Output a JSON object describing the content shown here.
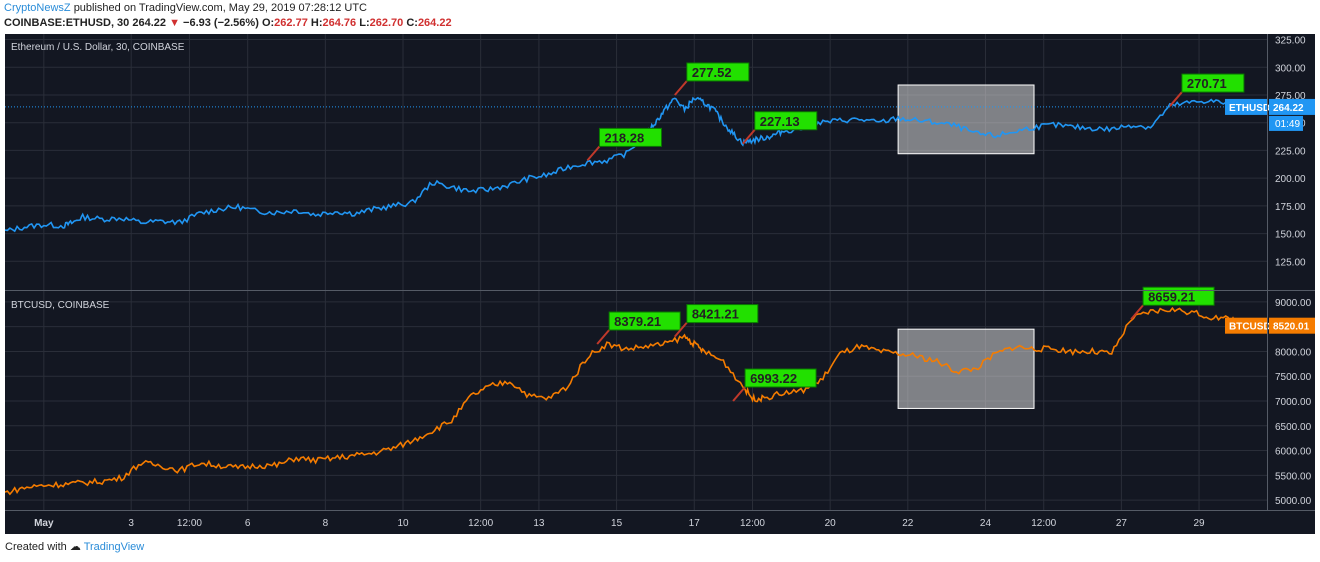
{
  "header": {
    "author": "CryptoNewsZ",
    "published": "published on TradingView.com, May 29, 2019 07:28:12 UTC",
    "symbol": "COINBASE:ETHUSD, 30",
    "last": "264.22",
    "change_arrow": "▼",
    "change": "−6.93 (−2.56%)",
    "o_label": "O:",
    "o_value": "262.77",
    "h_label": "H:",
    "h_value": "264.76",
    "l_label": "L:",
    "l_value": "262.70",
    "c_label": "C:",
    "c_value": "264.22"
  },
  "footer": {
    "created_with": "Created with",
    "brand": "TradingView"
  },
  "colors": {
    "background": "#131722",
    "grid": "#2a2e39",
    "eth_line": "#2196f3",
    "btc_line": "#f57c00",
    "callout_bg": "#22e000",
    "callout_border": "#0a7a00",
    "arrow": "#c0392b",
    "highlight_box": "#d9d9d9",
    "axis_text": "#d1d4dc",
    "price_line": "#2196f3"
  },
  "chart_data": [
    {
      "type": "line",
      "title": "Ethereum / U.S. Dollar, 30, COINBASE",
      "series": [
        {
          "name": "ETHUSD"
        }
      ],
      "ylim": [
        100,
        330
      ],
      "y_ticks": [
        "325.00",
        "300.00",
        "275.00",
        "250.00",
        "225.00",
        "200.00",
        "175.00",
        "150.00",
        "125.00"
      ],
      "y_tick_values": [
        325,
        300,
        275,
        250,
        225,
        200,
        175,
        150,
        125
      ],
      "current_label": "ETHUSD",
      "current_value": "264.22",
      "countdown": "01:49",
      "x": [
        0,
        1,
        2,
        3,
        4,
        5,
        6,
        7,
        8,
        9,
        10,
        11,
        12,
        13,
        14,
        15,
        16,
        17,
        18,
        19,
        20,
        21,
        22,
        23,
        24,
        25,
        26,
        27,
        28,
        29
      ],
      "points": [
        [
          0,
          152
        ],
        [
          1,
          156
        ],
        [
          2,
          158
        ],
        [
          3,
          157
        ],
        [
          3.5,
          160
        ],
        [
          4,
          165
        ],
        [
          5,
          163
        ],
        [
          6,
          164
        ],
        [
          7,
          160
        ],
        [
          8,
          161
        ],
        [
          9,
          160
        ],
        [
          10,
          168
        ],
        [
          11,
          172
        ],
        [
          12,
          174
        ],
        [
          13,
          170
        ],
        [
          14,
          169
        ],
        [
          15,
          171
        ],
        [
          16,
          167
        ],
        [
          17,
          170
        ],
        [
          18,
          168
        ],
        [
          19,
          172
        ],
        [
          20,
          175
        ],
        [
          21,
          178
        ],
        [
          22,
          196
        ],
        [
          23,
          192
        ],
        [
          24,
          188
        ],
        [
          25,
          190
        ],
        [
          26,
          194
        ],
        [
          27,
          200
        ],
        [
          28,
          203
        ],
        [
          29,
          210
        ],
        [
          30,
          214
        ],
        [
          31,
          216
        ],
        [
          32,
          222
        ],
        [
          33,
          240
        ],
        [
          33.5,
          250
        ],
        [
          34,
          262
        ],
        [
          34.5,
          272
        ],
        [
          35,
          262
        ],
        [
          35.5,
          272
        ],
        [
          36,
          268
        ],
        [
          36.5,
          262
        ],
        [
          37,
          250
        ],
        [
          37.5,
          240
        ],
        [
          38,
          232
        ],
        [
          38.5,
          234
        ],
        [
          39,
          236
        ],
        [
          39.5,
          238
        ],
        [
          40,
          242
        ],
        [
          41,
          245
        ],
        [
          42,
          250
        ],
        [
          43,
          252
        ],
        [
          44,
          253
        ],
        [
          45,
          250
        ],
        [
          46,
          254
        ],
        [
          47,
          252
        ],
        [
          48,
          250
        ],
        [
          49,
          247
        ],
        [
          50,
          240
        ],
        [
          51,
          238
        ],
        [
          52,
          242
        ],
        [
          53,
          246
        ],
        [
          54,
          248
        ],
        [
          55,
          246
        ],
        [
          56,
          245
        ],
        [
          57,
          244
        ],
        [
          58,
          248
        ],
        [
          59,
          246
        ],
        [
          60,
          265
        ],
        [
          61,
          268
        ],
        [
          62,
          270
        ],
        [
          63,
          267
        ],
        [
          64,
          265
        ],
        [
          65,
          264
        ]
      ],
      "annotations": [
        {
          "label": "218.28",
          "at": [
            30,
            216
          ]
        },
        {
          "label": "277.52",
          "at": [
            34.5,
            275
          ]
        },
        {
          "label": "227.13",
          "at": [
            38,
            231
          ]
        },
        {
          "label": "270.71",
          "at": [
            60,
            265
          ]
        }
      ],
      "highlight": {
        "x": [
          46,
          53
        ],
        "y": [
          222,
          284
        ]
      }
    },
    {
      "type": "line",
      "title": "BTCUSD, COINBASE",
      "series": [
        {
          "name": "BTCUSD"
        }
      ],
      "ylim": [
        4800,
        9200
      ],
      "y_ticks": [
        "9000.00",
        "8500.00",
        "8000.00",
        "7500.00",
        "7000.00",
        "6500.00",
        "6000.00",
        "5500.00",
        "5000.00"
      ],
      "y_tick_values": [
        9000,
        8500,
        8000,
        7500,
        7000,
        6500,
        6000,
        5500,
        5000
      ],
      "current_label": "BTCUSD",
      "current_value": "8520.01",
      "points": [
        [
          0,
          5150
        ],
        [
          1,
          5250
        ],
        [
          2,
          5300
        ],
        [
          3,
          5320
        ],
        [
          4,
          5350
        ],
        [
          5,
          5380
        ],
        [
          6,
          5450
        ],
        [
          7,
          5750
        ],
        [
          8,
          5700
        ],
        [
          9,
          5600
        ],
        [
          10,
          5750
        ],
        [
          11,
          5700
        ],
        [
          12,
          5650
        ],
        [
          13,
          5700
        ],
        [
          14,
          5700
        ],
        [
          15,
          5850
        ],
        [
          16,
          5800
        ],
        [
          17,
          5850
        ],
        [
          18,
          5900
        ],
        [
          19,
          5950
        ],
        [
          20,
          6050
        ],
        [
          21,
          6200
        ],
        [
          22,
          6400
        ],
        [
          23,
          6600
        ],
        [
          24,
          7100
        ],
        [
          25,
          7300
        ],
        [
          26,
          7400
        ],
        [
          27,
          7100
        ],
        [
          28,
          7050
        ],
        [
          29,
          7300
        ],
        [
          30,
          7900
        ],
        [
          31,
          8150
        ],
        [
          32,
          8050
        ],
        [
          33,
          8100
        ],
        [
          34,
          8150
        ],
        [
          35,
          8300
        ],
        [
          35.5,
          8150
        ],
        [
          36,
          8000
        ],
        [
          37,
          7800
        ],
        [
          38,
          7300
        ],
        [
          38.5,
          7050
        ],
        [
          39,
          7050
        ],
        [
          40,
          7150
        ],
        [
          41,
          7200
        ],
        [
          42,
          7400
        ],
        [
          43,
          7950
        ],
        [
          44,
          8100
        ],
        [
          45,
          8000
        ],
        [
          46,
          7950
        ],
        [
          47,
          7900
        ],
        [
          48,
          7800
        ],
        [
          49,
          7600
        ],
        [
          50,
          7650
        ],
        [
          51,
          7950
        ],
        [
          52,
          8100
        ],
        [
          53,
          8050
        ],
        [
          54,
          8050
        ],
        [
          55,
          8000
        ],
        [
          56,
          8000
        ],
        [
          57,
          7950
        ],
        [
          58,
          8650
        ],
        [
          59,
          8800
        ],
        [
          60,
          8850
        ],
        [
          61,
          8800
        ],
        [
          62,
          8700
        ],
        [
          63,
          8650
        ],
        [
          64,
          8600
        ]
      ],
      "annotations": [
        {
          "label": "8379.21",
          "at": [
            30.5,
            8150
          ]
        },
        {
          "label": "8421.21",
          "at": [
            34.5,
            8300
          ]
        },
        {
          "label": "6993.22",
          "at": [
            37.5,
            7000
          ]
        },
        {
          "label": "8659.21",
          "at": [
            58,
            8650
          ]
        }
      ],
      "highlight": {
        "x": [
          46,
          53
        ],
        "y": [
          6850,
          8450
        ]
      }
    }
  ],
  "x_axis": {
    "labels": [
      "May",
      "3",
      "12:00",
      "6",
      "8",
      "10",
      "12:00",
      "13",
      "15",
      "17",
      "12:00",
      "20",
      "22",
      "24",
      "12:00",
      "27",
      "29"
    ],
    "positions": [
      2,
      6.5,
      9.5,
      12.5,
      16.5,
      20.5,
      24.5,
      27.5,
      31.5,
      35.5,
      38.5,
      42.5,
      46.5,
      50.5,
      53.5,
      57.5,
      61.5
    ]
  }
}
